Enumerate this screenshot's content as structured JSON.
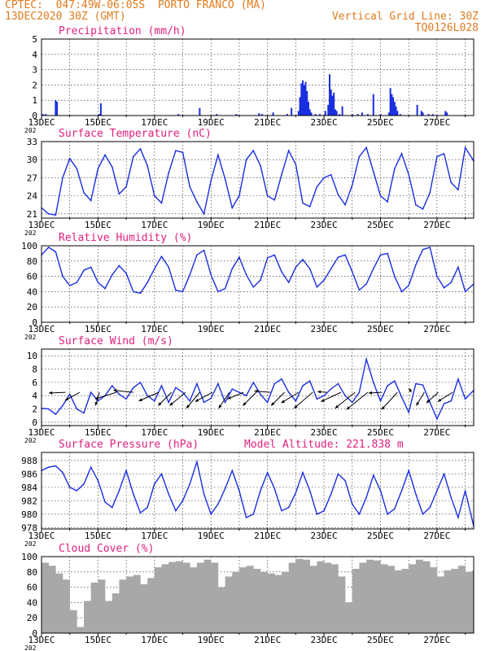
{
  "header": {
    "station_line": "CPTEC:  047:49W-06:05S  PORTO FRANCO (MA)",
    "date_line": "13DEC2020 30Z (GMT)",
    "grid_line": "Vertical Grid Line: 30Z",
    "code": "TQ0126L028",
    "year_fragment": "202"
  },
  "x_labels": [
    "13DEC",
    "15DEC",
    "17DEC",
    "19DEC",
    "21DEC",
    "23DEC",
    "25DEC",
    "27DEC"
  ],
  "colors": {
    "header": "#e07b1f",
    "title": "#e0207f",
    "line": "#1a2ee0",
    "cloud": "#a8a8a8",
    "arrow": "#000000"
  },
  "chart_data": [
    {
      "id": "precip",
      "type": "bar",
      "title": "Precipitation (mm/h)",
      "x_unit": "days since 13DEC2020 30Z",
      "xlim": [
        0,
        15.3
      ],
      "ylim": [
        0,
        5
      ],
      "yticks": [
        0,
        1,
        2,
        3,
        4,
        5
      ],
      "x": [
        0.05,
        0.15,
        0.5,
        0.55,
        2.05,
        2.1,
        4.85,
        5.6,
        6.2,
        6.9,
        7.7,
        7.8,
        8.2,
        8.7,
        8.85,
        9.1,
        9.15,
        9.2,
        9.25,
        9.3,
        9.35,
        9.4,
        9.45,
        9.5,
        9.55,
        9.7,
        9.85,
        10.05,
        10.15,
        10.2,
        10.25,
        10.3,
        10.35,
        10.4,
        10.45,
        10.55,
        10.65,
        11.0,
        11.2,
        11.35,
        11.55,
        11.75,
        12.0,
        12.3,
        12.35,
        12.4,
        12.45,
        12.5,
        12.55,
        12.6,
        12.7,
        13.3,
        13.45,
        13.5,
        13.7,
        13.85,
        14.3,
        14.35
      ],
      "values": [
        0.1,
        0.1,
        1.0,
        0.9,
        0.1,
        0.8,
        0.1,
        0.5,
        0.1,
        0.1,
        0.15,
        0.1,
        0.2,
        0.1,
        0.5,
        0.3,
        1.2,
        2.1,
        2.3,
        2.0,
        2.2,
        1.6,
        0.9,
        0.4,
        0.2,
        0.1,
        0.1,
        0.3,
        0.7,
        2.7,
        1.7,
        1.3,
        1.5,
        0.4,
        0.3,
        0.1,
        0.6,
        0.1,
        0.1,
        0.2,
        0.1,
        1.4,
        0.1,
        0.2,
        1.8,
        1.4,
        1.2,
        0.9,
        0.6,
        0.3,
        0.1,
        0.7,
        0.3,
        0.2,
        0.1,
        0.1,
        0.3,
        0.2
      ]
    },
    {
      "id": "temp",
      "type": "line",
      "title": "Surface Temperature (nC)",
      "x_unit": "days since 13DEC2020 30Z",
      "xlim": [
        0,
        15.3
      ],
      "ylim": [
        20.3,
        33
      ],
      "yticks": [
        21,
        24,
        27,
        30,
        33
      ],
      "x": [
        0,
        0.25,
        0.5,
        0.75,
        1.0,
        1.25,
        1.5,
        1.75,
        2.0,
        2.25,
        2.5,
        2.75,
        3.0,
        3.25,
        3.5,
        3.75,
        4.0,
        4.25,
        4.5,
        4.75,
        5.0,
        5.25,
        5.5,
        5.75,
        6.0,
        6.25,
        6.5,
        6.75,
        7.0,
        7.25,
        7.5,
        7.75,
        8.0,
        8.25,
        8.5,
        8.75,
        9.0,
        9.25,
        9.5,
        9.75,
        10.0,
        10.25,
        10.5,
        10.75,
        11.0,
        11.25,
        11.5,
        11.75,
        12.0,
        12.25,
        12.5,
        12.75,
        13.0,
        13.25,
        13.5,
        13.75,
        14.0,
        14.25,
        14.5,
        14.75,
        15.0,
        15.3
      ],
      "values": [
        22,
        21,
        20.8,
        27,
        30.2,
        28.5,
        24.5,
        23.2,
        28.5,
        30.8,
        28.8,
        24.3,
        25.5,
        30.5,
        31.8,
        29,
        24,
        22.8,
        27.8,
        31.5,
        31.2,
        25.5,
        23,
        21,
        26.5,
        30.8,
        26.8,
        22,
        24,
        30,
        31.5,
        29,
        24,
        23.3,
        27.5,
        31.5,
        29.2,
        22.8,
        22.2,
        25.5,
        27,
        27.5,
        24.2,
        22.5,
        25.8,
        30.5,
        32,
        28,
        24,
        23,
        28.5,
        31,
        27.5,
        22.5,
        21.8,
        24.5,
        30.5,
        31,
        26.2,
        25,
        32,
        29.8
      ]
    },
    {
      "id": "rh",
      "type": "line",
      "title": "Relative Humidity (%)",
      "x_unit": "days since 13DEC2020 30Z",
      "xlim": [
        0,
        15.3
      ],
      "ylim": [
        0,
        100
      ],
      "yticks": [
        0,
        20,
        40,
        60,
        80,
        100
      ],
      "x": [
        0,
        0.25,
        0.5,
        0.75,
        1.0,
        1.25,
        1.5,
        1.75,
        2.0,
        2.25,
        2.5,
        2.75,
        3.0,
        3.25,
        3.5,
        3.75,
        4.0,
        4.25,
        4.5,
        4.75,
        5.0,
        5.25,
        5.5,
        5.75,
        6.0,
        6.25,
        6.5,
        6.75,
        7.0,
        7.25,
        7.5,
        7.75,
        8.0,
        8.25,
        8.5,
        8.75,
        9.0,
        9.25,
        9.5,
        9.75,
        10.0,
        10.25,
        10.5,
        10.75,
        11.0,
        11.25,
        11.5,
        11.75,
        12.0,
        12.25,
        12.5,
        12.75,
        13.0,
        13.25,
        13.5,
        13.75,
        14.0,
        14.25,
        14.5,
        14.75,
        15.0,
        15.3
      ],
      "values": [
        88,
        98,
        92,
        60,
        48,
        52,
        68,
        72,
        52,
        44,
        62,
        74,
        64,
        40,
        38,
        52,
        70,
        86,
        72,
        42,
        40,
        62,
        88,
        94,
        62,
        40,
        44,
        70,
        85,
        62,
        46,
        55,
        84,
        88,
        66,
        52,
        72,
        82,
        70,
        46,
        55,
        70,
        85,
        88,
        66,
        42,
        50,
        70,
        88,
        90,
        60,
        40,
        48,
        75,
        95,
        98,
        60,
        45,
        52,
        72,
        40,
        50
      ]
    },
    {
      "id": "wind",
      "type": "line",
      "title": "Surface Wind (m/s)",
      "x_unit": "days since 13DEC2020 30Z",
      "xlim": [
        0,
        15.3
      ],
      "ylim": [
        -0.5,
        11
      ],
      "yticks": [
        0,
        2,
        4,
        6,
        8,
        10
      ],
      "x": [
        0,
        0.25,
        0.5,
        0.75,
        1.0,
        1.25,
        1.5,
        1.75,
        2.0,
        2.25,
        2.5,
        2.75,
        3.0,
        3.25,
        3.5,
        3.75,
        4.0,
        4.25,
        4.5,
        4.75,
        5.0,
        5.25,
        5.5,
        5.75,
        6.0,
        6.25,
        6.5,
        6.75,
        7.0,
        7.25,
        7.5,
        7.75,
        8.0,
        8.25,
        8.5,
        8.75,
        9.0,
        9.25,
        9.5,
        9.75,
        10.0,
        10.25,
        10.5,
        10.75,
        11.0,
        11.25,
        11.5,
        11.75,
        12.0,
        12.25,
        12.5,
        12.75,
        13.0,
        13.25,
        13.5,
        13.75,
        14.0,
        14.25,
        14.5,
        14.75,
        15.0,
        15.3
      ],
      "values": [
        2.1,
        2.0,
        1.2,
        2.5,
        4.2,
        2.0,
        1.4,
        4.5,
        3.2,
        4.0,
        5.5,
        4.2,
        3.5,
        5.2,
        6.0,
        4.0,
        3.2,
        5.5,
        3.0,
        5.2,
        4.5,
        3.2,
        5.8,
        3.0,
        3.6,
        5.8,
        3.0,
        5.0,
        4.5,
        4.0,
        6.0,
        4.2,
        3.0,
        5.8,
        6.5,
        4.5,
        3.2,
        5.5,
        6.2,
        3.5,
        4.0,
        5.0,
        5.8,
        4.0,
        3.0,
        4.5,
        9.5,
        6.0,
        3.2,
        5.5,
        6.2,
        3.8,
        1.5,
        5.8,
        5.6,
        3.0,
        0.5,
        2.8,
        3.2,
        6.5,
        3.5,
        4.8
      ],
      "vectors": [
        {
          "t": 0.85,
          "u": -2.5,
          "v": -0.1
        },
        {
          "t": 1.35,
          "u": -2.2,
          "v": -1.2
        },
        {
          "t": 2.05,
          "u": -0.6,
          "v": -2.0
        },
        {
          "t": 2.65,
          "u": -3.2,
          "v": -1.0
        },
        {
          "t": 3.25,
          "u": -3.0,
          "v": 0.3
        },
        {
          "t": 4.15,
          "u": -3.0,
          "v": -1.3
        },
        {
          "t": 4.6,
          "u": -2.0,
          "v": -2.0
        },
        {
          "t": 5.1,
          "u": -2.4,
          "v": -2.0
        },
        {
          "t": 5.6,
          "u": -2.0,
          "v": -2.4
        },
        {
          "t": 6.05,
          "u": -2.6,
          "v": -1.4
        },
        {
          "t": 6.65,
          "u": -1.6,
          "v": -2.4
        },
        {
          "t": 7.15,
          "u": -2.4,
          "v": -1.0
        },
        {
          "t": 7.6,
          "u": -2.0,
          "v": -2.0
        },
        {
          "t": 8.1,
          "u": -2.4,
          "v": 0.2
        },
        {
          "t": 8.6,
          "u": -2.0,
          "v": -2.0
        },
        {
          "t": 9.1,
          "u": -2.6,
          "v": -1.6
        },
        {
          "t": 9.6,
          "u": -2.8,
          "v": -2.4
        },
        {
          "t": 10.1,
          "u": -1.4,
          "v": 0.1
        },
        {
          "t": 10.6,
          "u": -3.0,
          "v": -1.4
        },
        {
          "t": 11.1,
          "u": -3.0,
          "v": -2.4
        },
        {
          "t": 11.55,
          "u": -3.2,
          "v": -2.6
        },
        {
          "t": 12.05,
          "u": -2.0,
          "v": -0.1
        },
        {
          "t": 12.6,
          "u": -2.4,
          "v": -2.6
        },
        {
          "t": 13.1,
          "u": -0.4,
          "v": 0.6
        },
        {
          "t": 13.55,
          "u": -1.2,
          "v": -2.0
        },
        {
          "t": 14.05,
          "u": -1.8,
          "v": -1.6
        },
        {
          "t": 14.55,
          "u": -2.2,
          "v": -1.4
        }
      ]
    },
    {
      "id": "pres",
      "type": "line",
      "title": "Surface Pressure (hPa)",
      "annotation": "Model Altitude: 221.838  m",
      "x_unit": "days since 13DEC2020 30Z",
      "xlim": [
        0,
        15.3
      ],
      "ylim": [
        977.8,
        989.2
      ],
      "yticks": [
        978,
        980,
        982,
        984,
        986,
        988
      ],
      "x": [
        0,
        0.25,
        0.5,
        0.75,
        1.0,
        1.25,
        1.5,
        1.75,
        2.0,
        2.25,
        2.5,
        2.75,
        3.0,
        3.25,
        3.5,
        3.75,
        4.0,
        4.25,
        4.5,
        4.75,
        5.0,
        5.25,
        5.5,
        5.75,
        6.0,
        6.25,
        6.5,
        6.75,
        7.0,
        7.25,
        7.5,
        7.75,
        8.0,
        8.25,
        8.5,
        8.75,
        9.0,
        9.25,
        9.5,
        9.75,
        10.0,
        10.25,
        10.5,
        10.75,
        11.0,
        11.25,
        11.5,
        11.75,
        12.0,
        12.25,
        12.5,
        12.75,
        13.0,
        13.25,
        13.5,
        13.75,
        14.0,
        14.25,
        14.5,
        14.75,
        15.0,
        15.3
      ],
      "values": [
        986.5,
        987.0,
        987.2,
        986.2,
        984.0,
        983.5,
        984.5,
        987.0,
        985.0,
        981.8,
        981.0,
        983.5,
        986.5,
        983.0,
        980.2,
        981.0,
        984.5,
        986.0,
        983.0,
        980.5,
        982.0,
        984.5,
        987.8,
        983.0,
        980.0,
        981.5,
        983.8,
        986.5,
        983.5,
        979.5,
        980.0,
        983.5,
        986.2,
        983.8,
        980.5,
        981.0,
        983.2,
        986.2,
        983.5,
        980.0,
        980.5,
        983.0,
        986.0,
        985.0,
        981.5,
        980.0,
        982.5,
        985.8,
        983.5,
        980.0,
        980.8,
        983.5,
        986.5,
        983.0,
        980.0,
        981.0,
        983.5,
        986.0,
        982.5,
        979.5,
        983.5,
        978.2
      ]
    },
    {
      "id": "cloud",
      "type": "bar",
      "title": "Cloud Cover (%)",
      "x_unit": "days since 13DEC2020 30Z",
      "xlim": [
        0,
        15.3
      ],
      "ylim": [
        0,
        100
      ],
      "yticks": [
        0,
        20,
        40,
        60,
        80,
        100
      ],
      "x": [
        0,
        0.25,
        0.5,
        0.75,
        1.0,
        1.25,
        1.5,
        1.75,
        2.0,
        2.25,
        2.5,
        2.75,
        3.0,
        3.25,
        3.5,
        3.75,
        4.0,
        4.25,
        4.5,
        4.75,
        5.0,
        5.25,
        5.5,
        5.75,
        6.0,
        6.25,
        6.5,
        6.75,
        7.0,
        7.25,
        7.5,
        7.75,
        8.0,
        8.25,
        8.5,
        8.75,
        9.0,
        9.25,
        9.5,
        9.75,
        10.0,
        10.25,
        10.5,
        10.75,
        11.0,
        11.25,
        11.5,
        11.75,
        12.0,
        12.25,
        12.5,
        12.75,
        13.0,
        13.25,
        13.5,
        13.75,
        14.0,
        14.25,
        14.5,
        14.75,
        15.0,
        15.25
      ],
      "values": [
        92,
        88,
        78,
        70,
        30,
        8,
        42,
        66,
        70,
        42,
        52,
        70,
        74,
        76,
        64,
        72,
        86,
        90,
        93,
        94,
        92,
        86,
        92,
        96,
        92,
        60,
        74,
        80,
        86,
        88,
        84,
        80,
        78,
        76,
        80,
        92,
        97,
        96,
        88,
        94,
        92,
        90,
        74,
        40,
        84,
        92,
        96,
        95,
        90,
        88,
        82,
        84,
        90,
        96,
        94,
        86,
        74,
        82,
        84,
        88,
        80,
        82
      ]
    }
  ]
}
